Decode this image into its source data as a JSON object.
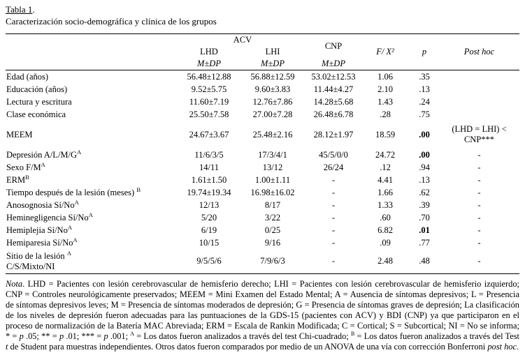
{
  "doc": {
    "title": "Tabla 1",
    "title_period": ".",
    "subtitle": "Caracterización socio-demográfica y clínica de los grupos"
  },
  "table": {
    "header": {
      "acv": "ACV",
      "col_lhd": "LHD",
      "col_lhi": "LHI",
      "col_cnp": "CNP",
      "m_dp": "M±DP",
      "col_f": "F/ X²",
      "col_p": "p",
      "col_posthoc": "Post hoc"
    },
    "rows": [
      {
        "label": "Edad (años)",
        "lhd": "56.48±12.88",
        "lhi": "56.88±12.59",
        "cnp": "53.02±12.53",
        "f": "1.06",
        "p": ".35",
        "posthoc": ""
      },
      {
        "label": "Educación (años)",
        "lhd": "9.52±5.75",
        "lhi": "9.60±3.83",
        "cnp": "11.44±4.27",
        "f": "2.10",
        "p": ".13",
        "posthoc": ""
      },
      {
        "label": "Lectura y escritura",
        "lhd": "11.60±7.19",
        "lhi": "12.76±7.86",
        "cnp": "14.28±5.68",
        "f": "1.43",
        "p": ".24",
        "posthoc": ""
      },
      {
        "label": "Clase económica",
        "lhd": "25.50±7.58",
        "lhi": "27.00±7.28",
        "cnp": "26.48±6.78",
        "f": ".28",
        "p": ".75",
        "posthoc": ""
      },
      {
        "label": "MEEM",
        "lhd": "24.67±3.67",
        "lhi": "25.48±2.16",
        "cnp": "28.12±1.97",
        "f": "18.59",
        "p": ".00",
        "p_bold": true,
        "posthoc": [
          "(LHD = LHI) <",
          "CNP***"
        ],
        "cls": "tall"
      },
      {
        "label": "Depresión A/L/M/G",
        "sup": "A",
        "lhd": "11/6/3/5",
        "lhi": "17/3/4/1",
        "cnp": "45/5/0/0",
        "f": "24.72",
        "p": ".00",
        "p_bold": true,
        "posthoc": "-"
      },
      {
        "label": "Sexo F/M",
        "sup": "A",
        "lhd": "14/11",
        "lhi": "13/12",
        "cnp": "26/24",
        "f": ".12",
        "p": ".94",
        "posthoc": "-"
      },
      {
        "label": "ERM",
        "sup": "B",
        "lhd": "1.61±1.50",
        "lhi": "1.00±1.11",
        "cnp": "-",
        "f": "4.41",
        "p": ".13",
        "posthoc": "-"
      },
      {
        "label": "Tiempo después de la lesión (meses) ",
        "sup": "B",
        "lhd": "19.74±19.34",
        "lhi": "16.98±16.02",
        "cnp": "-",
        "f": "1.66",
        "p": ".62",
        "posthoc": "-"
      },
      {
        "label": "Anosognosia Sí/No",
        "sup": "A",
        "lhd": "12/13",
        "lhi": "8/17",
        "cnp": "-",
        "f": "1.33",
        "p": ".39",
        "posthoc": "-"
      },
      {
        "label": "Heminegligencia Sí/No",
        "sup": "A",
        "lhd": "5/20",
        "lhi": "3/22",
        "cnp": "-",
        "f": ".60",
        "p": ".70",
        "posthoc": "-"
      },
      {
        "label": "Hemiplejia Sí/No",
        "sup": "A",
        "lhd": "6/19",
        "lhi": "0/25",
        "cnp": "-",
        "f": "6.82",
        "p": ".01",
        "p_bold": true,
        "posthoc": "-"
      },
      {
        "label": "Hemiparesia Sí/No",
        "sup": "A",
        "lhd": "10/15",
        "lhi": "9/16",
        "cnp": "-",
        "f": ".09",
        "p": ".77",
        "posthoc": "-"
      },
      {
        "label": "Sitio de la lesión ",
        "sup": "A",
        "label2": "C/S/Mixto/NI",
        "lhd": "9/5/5/6",
        "lhi": "7/9/6/3",
        "cnp": "-",
        "f": "2.48",
        "p": ".48",
        "posthoc": "-",
        "cls": "twoline"
      }
    ]
  },
  "note": {
    "segments": [
      {
        "t": "Nota",
        "i": true
      },
      {
        "t": ". LHD = Pacientes con lesión cerebrovascular de hemisferio derecho; LHI = Pacientes con lesión cerebrovascular de hemisferio izquierdo; CNP = Controles neurológicamente preservados; MEEM = Mini Examen del Estado Mental; A = Ausencia de síntomas depresivos; L = Presencia de síntomas depresivos leves; M = Presencia de síntomas moderados de depresión; G = Presencia de síntomas graves de depresión; La clasificación de los niveles de depresión fueron adecuadas para las puntuaciones de la GDS-15 (pacientes con ACV) y BDI (CNP) ya que participaron en el proceso de normalización de la Batería MAC Abreviada; ERM = Escala de Rankin Modificada; C = Cortical; S = Subcortical; NI = No se informa; * = "
      },
      {
        "t": "p",
        "i": true
      },
      {
        "t": " .05; ** = "
      },
      {
        "t": "p",
        "i": true
      },
      {
        "t": " .01; *** = "
      },
      {
        "t": "p",
        "i": true
      },
      {
        "t": " .001; "
      },
      {
        "t": "A",
        "sup": true
      },
      {
        "t": " = Los datos fueron analizados a través del test Chi-cuadrado; "
      },
      {
        "t": "B",
        "sup": true
      },
      {
        "t": " = Los datos fueron analizados a través del Test "
      },
      {
        "t": "t",
        "i": true
      },
      {
        "t": " de Student para muestras independientes. Otros datos fueron comparados por medio de un ANOVA de una vía con corrección Bonferroni "
      },
      {
        "t": "post hoc",
        "i": true
      },
      {
        "t": "."
      }
    ]
  }
}
